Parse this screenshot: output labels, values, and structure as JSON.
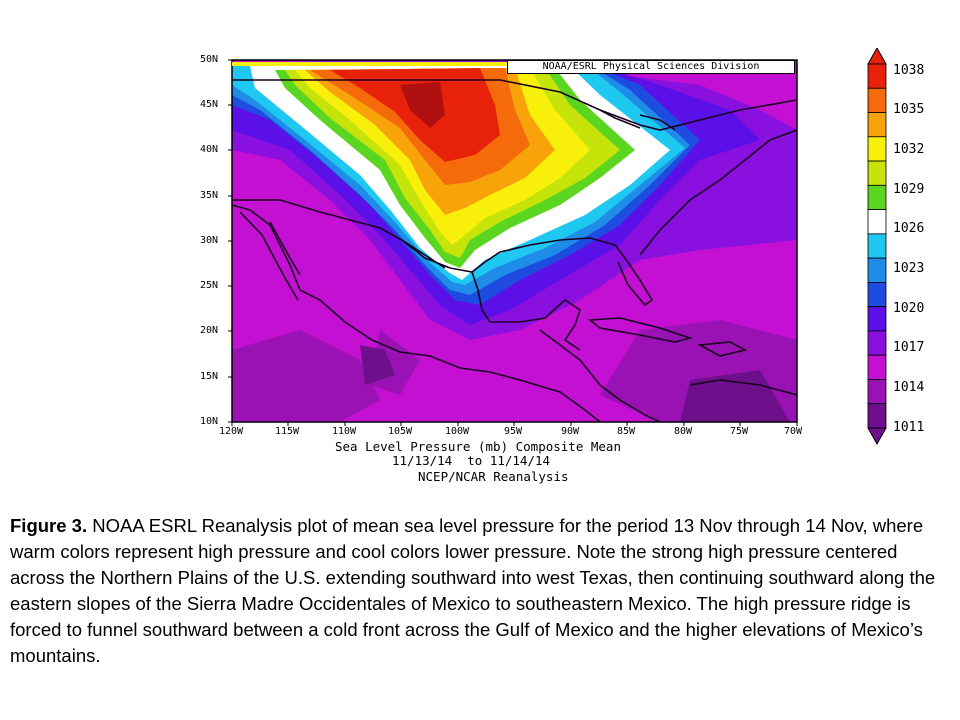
{
  "map": {
    "credit": "NOAA/ESRL Physical Sciences Division",
    "title_line1": "Sea Level Pressure (mb) Composite Mean",
    "title_line2": "11/13/14  to 11/14/14",
    "title_line3": "NCEP/NCAR Reanalysis",
    "lat_labels": [
      "50N",
      "45N",
      "40N",
      "35N",
      "30N",
      "25N",
      "20N",
      "15N",
      "10N"
    ],
    "lon_labels": [
      "120W",
      "115W",
      "110W",
      "105W",
      "100W",
      "95W",
      "90W",
      "85W",
      "80W",
      "75W",
      "70W"
    ],
    "extent": {
      "lon": [
        -120,
        -70
      ],
      "lat": [
        10,
        50
      ]
    },
    "colorbar": {
      "labels": [
        "1038",
        "1035",
        "1032",
        "1029",
        "1026",
        "1023",
        "1020",
        "1017",
        "1014",
        "1011"
      ],
      "colors": [
        "#e8220a",
        "#f56a0a",
        "#f9a30a",
        "#f8f00a",
        "#c6e40a",
        "#5bd620",
        "#ffffff",
        "#1ec8f0",
        "#1f8ce8",
        "#1e4ce0",
        "#5a10e6",
        "#8a10e0",
        "#c410d2",
        "#9a12b4",
        "#6e108c"
      ]
    }
  },
  "caption": {
    "label": "Figure 3.",
    "text": " NOAA ESRL Reanalysis plot of mean sea level pressure for the period 13 Nov through 14 Nov, where warm colors represent high pressure and cool colors lower pressure. Note the strong  high pressure centered across the Northern Plains of the U.S. extending southward into west Texas, then continuing southward along the eastern slopes of the Sierra Madre Occidentales of Mexico to southeastern Mexico. The high pressure ridge is forced to funnel southward between a cold front across the Gulf of Mexico and the higher elevations of Mexico’s mountains."
  }
}
